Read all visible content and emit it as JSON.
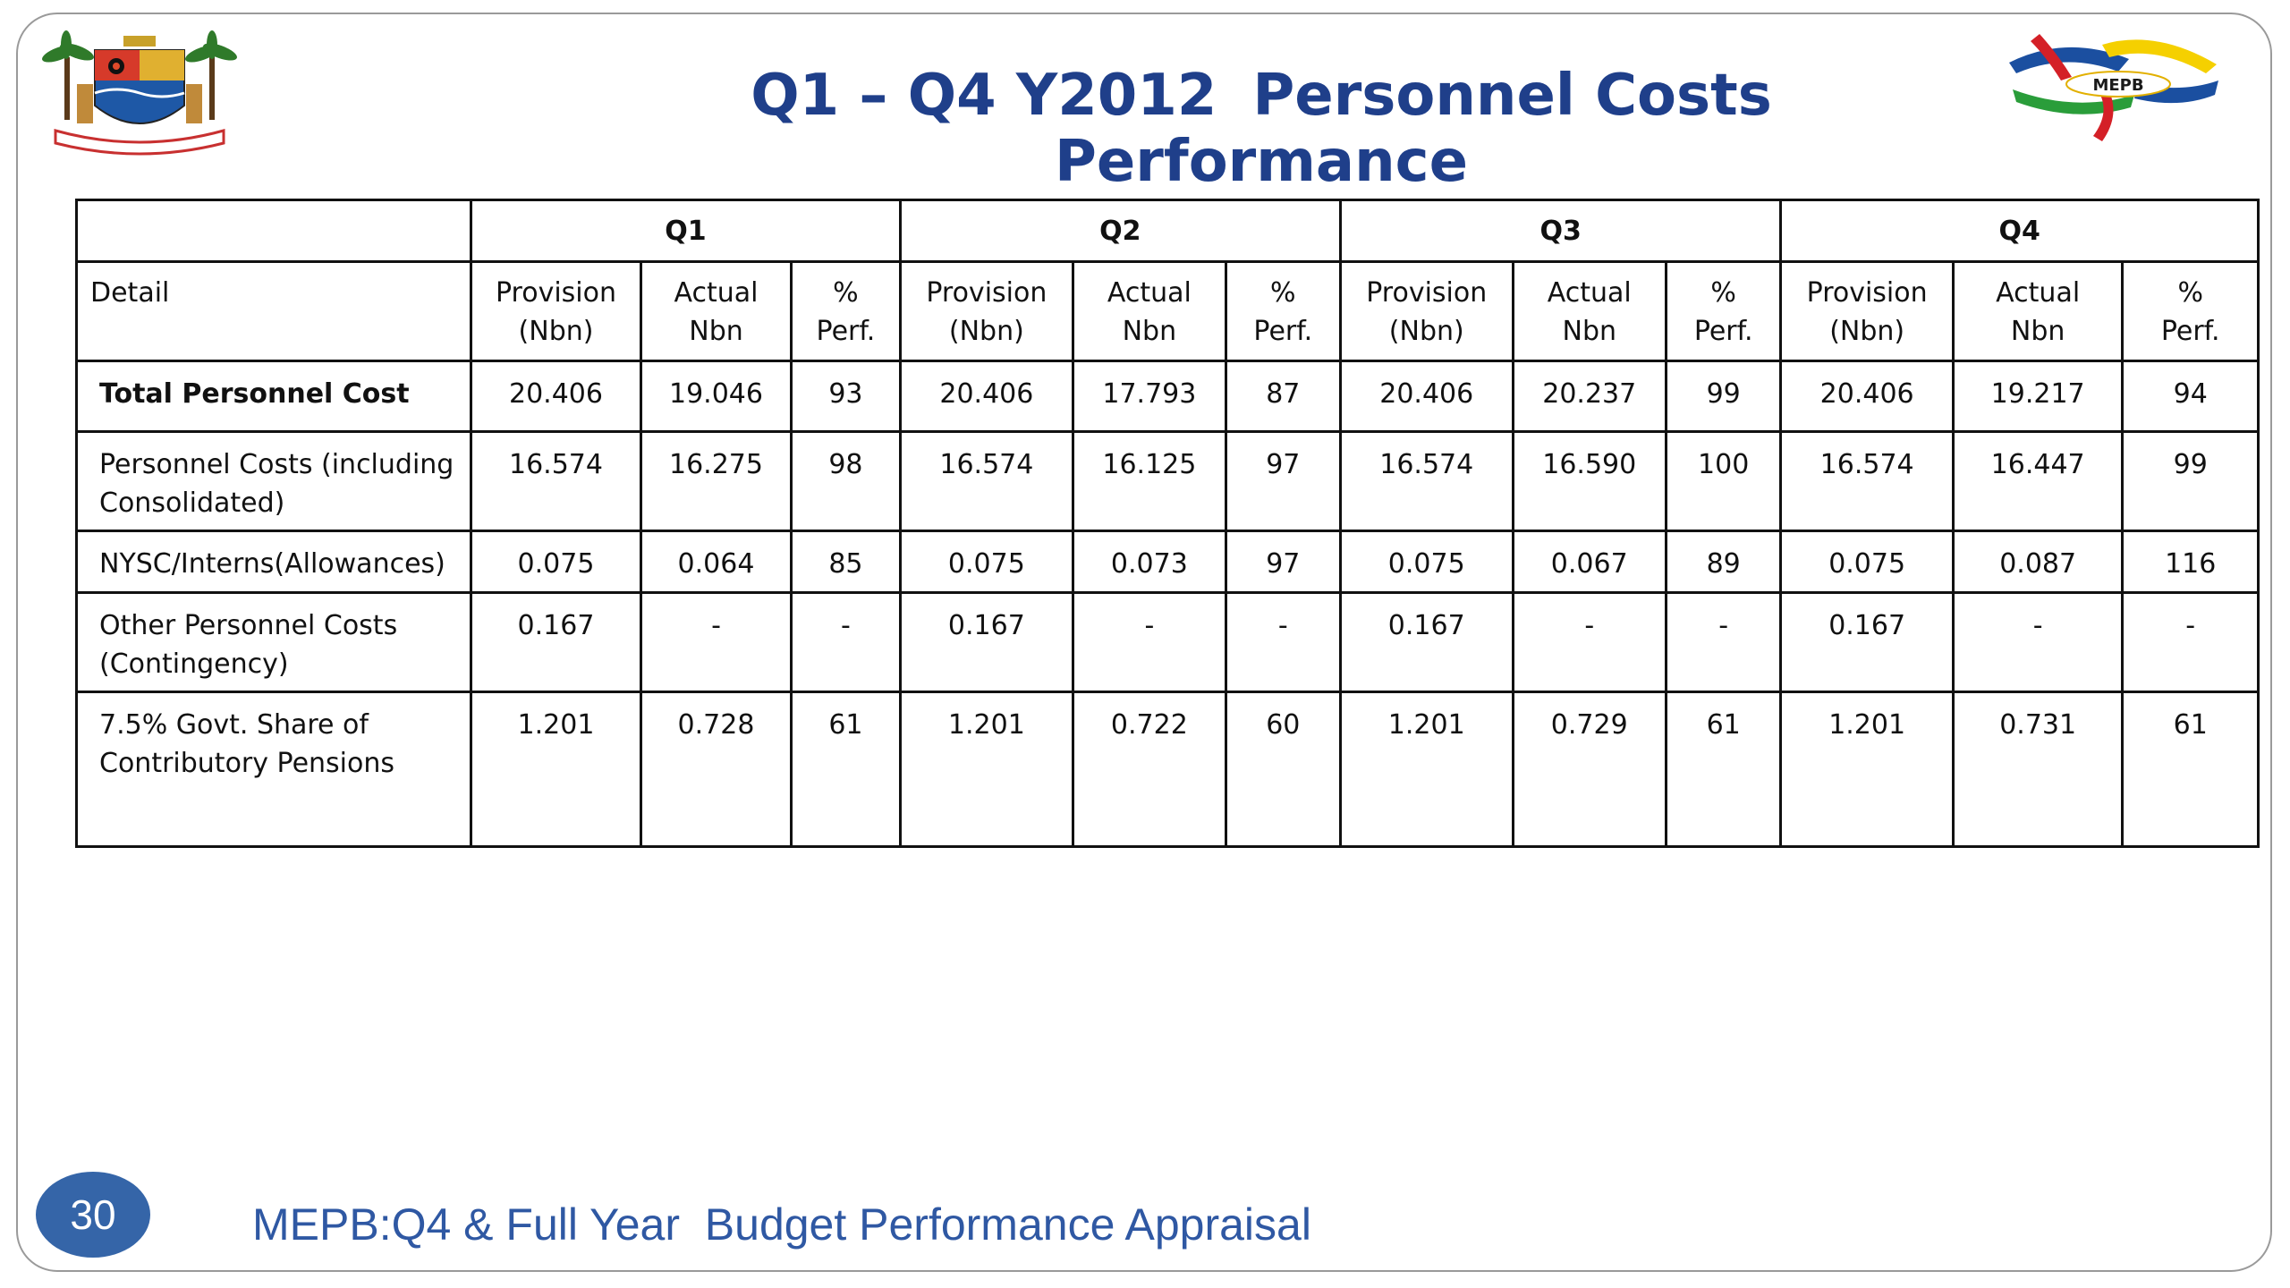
{
  "title": {
    "part1": "Q1 – Q4 Y2012",
    "part2": "Personnel Costs Performance"
  },
  "logos": {
    "left": "lagos-state-coat-of-arms",
    "right_text": "MEPB",
    "colors": {
      "red": "#d42027",
      "yellow": "#f5d000",
      "blue": "#1b4fa0",
      "green": "#2a9d3a"
    }
  },
  "table": {
    "quarters": [
      "Q1",
      "Q2",
      "Q3",
      "Q4"
    ],
    "detail_header": "Detail",
    "sub_headers": {
      "provision": [
        "Provision",
        "(Nbn)"
      ],
      "actual": [
        "Actual",
        "Nbn"
      ],
      "perf": [
        "%",
        "Perf."
      ]
    },
    "rows": [
      {
        "label_lines": [
          "Total Personnel  Cost"
        ],
        "values": [
          [
            "20.406",
            "19.046",
            "93"
          ],
          [
            "20.406",
            "17.793",
            "87"
          ],
          [
            "20.406",
            "20.237",
            "99"
          ],
          [
            "20.406",
            "19.217",
            "94"
          ]
        ]
      },
      {
        "label_lines": [
          "Personnel Costs  (including",
          "Consolidated)"
        ],
        "values": [
          [
            "16.574",
            "16.275",
            "98"
          ],
          [
            "16.574",
            "16.125",
            "97"
          ],
          [
            "16.574",
            "16.590",
            "100"
          ],
          [
            "16.574",
            "16.447",
            "99"
          ]
        ]
      },
      {
        "label_lines": [
          "NYSC/Interns(Allowances)"
        ],
        "values": [
          [
            "0.075",
            "0.064",
            "85"
          ],
          [
            "0.075",
            "0.073",
            "97"
          ],
          [
            "0.075",
            "0.067",
            "89"
          ],
          [
            "0.075",
            "0.087",
            "116"
          ]
        ]
      },
      {
        "label_lines": [
          "Other Personnel Costs",
          "(Contingency)"
        ],
        "values": [
          [
            "0.167",
            "-",
            "-"
          ],
          [
            "0.167",
            "-",
            "-"
          ],
          [
            "0.167",
            "-",
            "-"
          ],
          [
            "0.167",
            "-",
            "-"
          ]
        ]
      },
      {
        "label_lines": [
          "7.5% Govt. Share of",
          "Contributory Pensions"
        ],
        "values": [
          [
            "1.201",
            "0.728",
            "61"
          ],
          [
            "1.201",
            "0.722",
            "60"
          ],
          [
            "1.201",
            "0.729",
            "61"
          ],
          [
            "1.201",
            "0.731",
            "61"
          ]
        ]
      }
    ]
  },
  "footer": {
    "page_number": "30",
    "text": "MEPB:Q4 & Full Year  Budget Performance Appraisal"
  }
}
